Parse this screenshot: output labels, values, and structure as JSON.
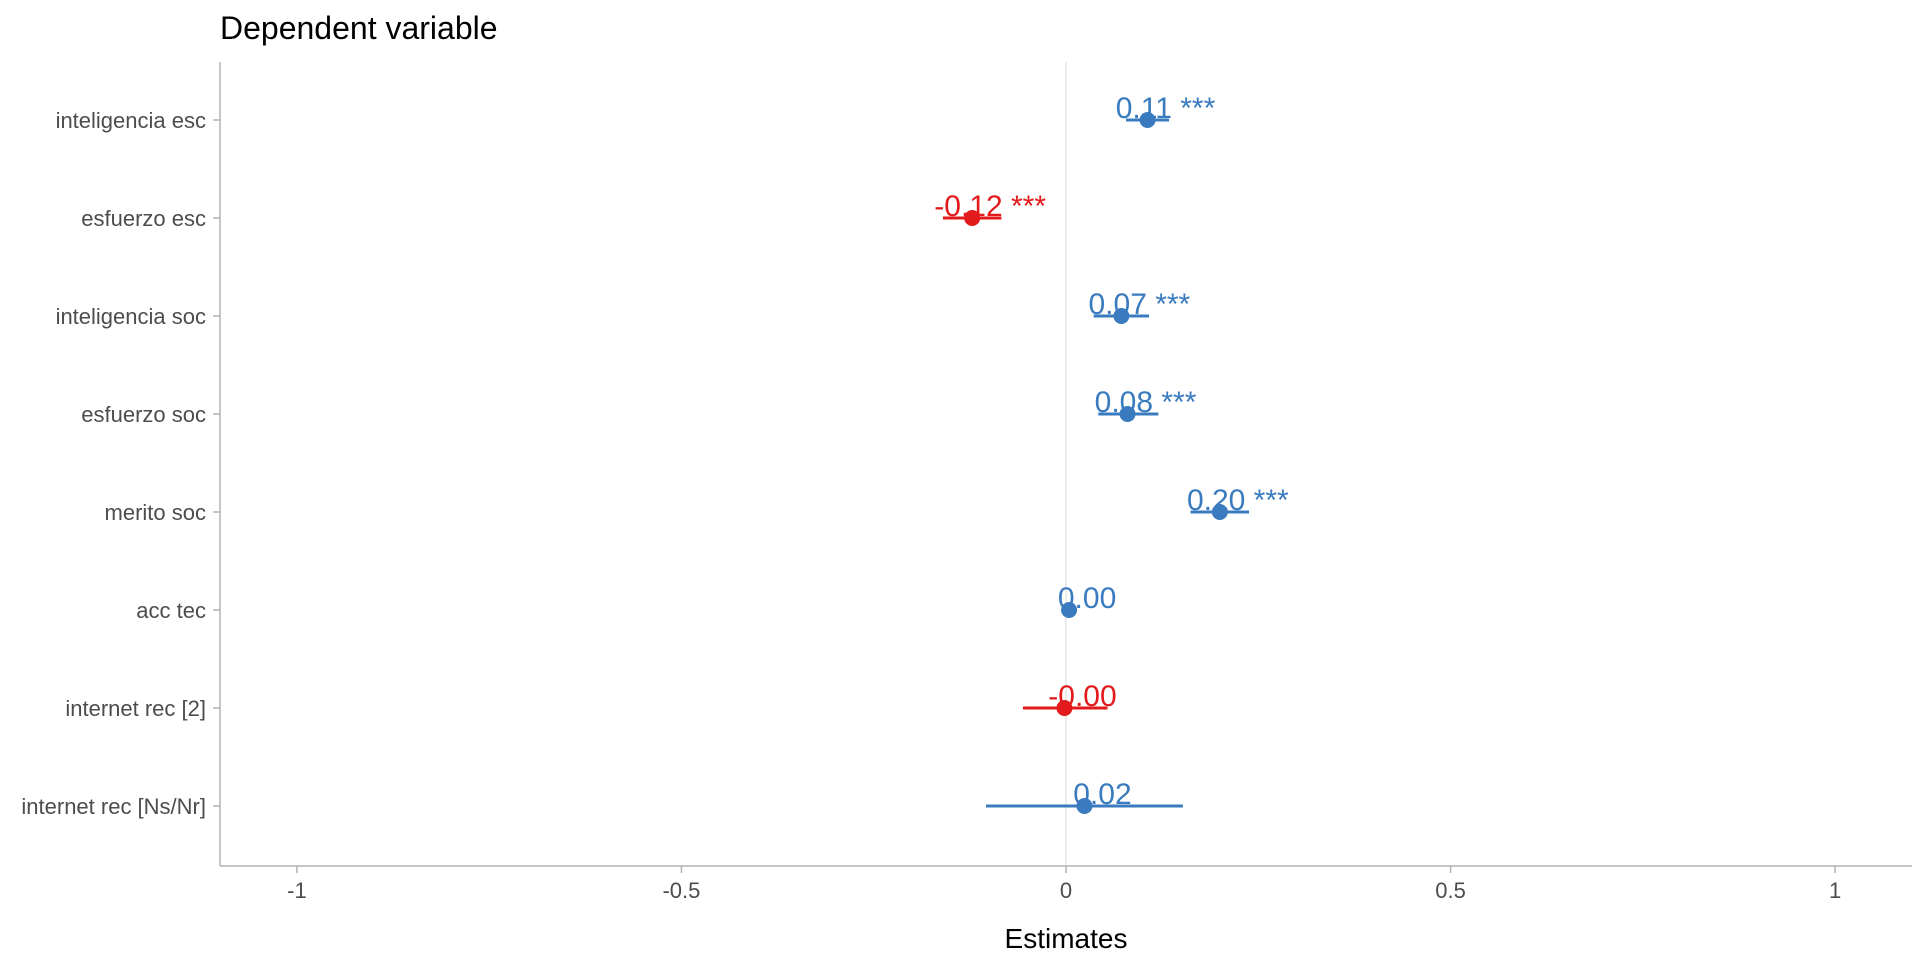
{
  "chart_data": {
    "type": "scatter",
    "subtype": "coefficient-plot",
    "title": "Dependent variable",
    "xlabel": "Estimates",
    "ylabel": "",
    "xlim": [
      -1.1,
      1.1
    ],
    "xticks": [
      -1,
      -0.5,
      0,
      0.5,
      1
    ],
    "xtick_labels": [
      "-1",
      "-0.5",
      "0",
      "0.5",
      "1"
    ],
    "grid": false,
    "reference_line": 0,
    "legend": "none",
    "colors": {
      "positive": "#3a7bbf",
      "negative": "#e31a1c",
      "reference": "#e6e6e6",
      "axis": "#b3b3b3"
    },
    "terms": [
      {
        "name": "inteligencia esc",
        "estimate": 0.106,
        "ci_low": 0.078,
        "ci_high": 0.134,
        "label": "0.11 ***"
      },
      {
        "name": "esfuerzo esc",
        "estimate": -0.122,
        "ci_low": -0.16,
        "ci_high": -0.084,
        "label": "-0.12 ***"
      },
      {
        "name": "inteligencia soc",
        "estimate": 0.072,
        "ci_low": 0.036,
        "ci_high": 0.108,
        "label": "0.07 ***"
      },
      {
        "name": "esfuerzo soc",
        "estimate": 0.08,
        "ci_low": 0.042,
        "ci_high": 0.12,
        "label": "0.08 ***"
      },
      {
        "name": "merito soc",
        "estimate": 0.2,
        "ci_low": 0.162,
        "ci_high": 0.238,
        "label": "0.20 ***"
      },
      {
        "name": "acc tec",
        "estimate": 0.004,
        "ci_low": -0.004,
        "ci_high": 0.012,
        "label": "0.00"
      },
      {
        "name": "internet rec [2]",
        "estimate": -0.002,
        "ci_low": -0.056,
        "ci_high": 0.054,
        "label": "-0.00"
      },
      {
        "name": "internet rec [Ns/Nr]",
        "estimate": 0.024,
        "ci_low": -0.104,
        "ci_high": 0.152,
        "label": "0.02"
      }
    ]
  }
}
